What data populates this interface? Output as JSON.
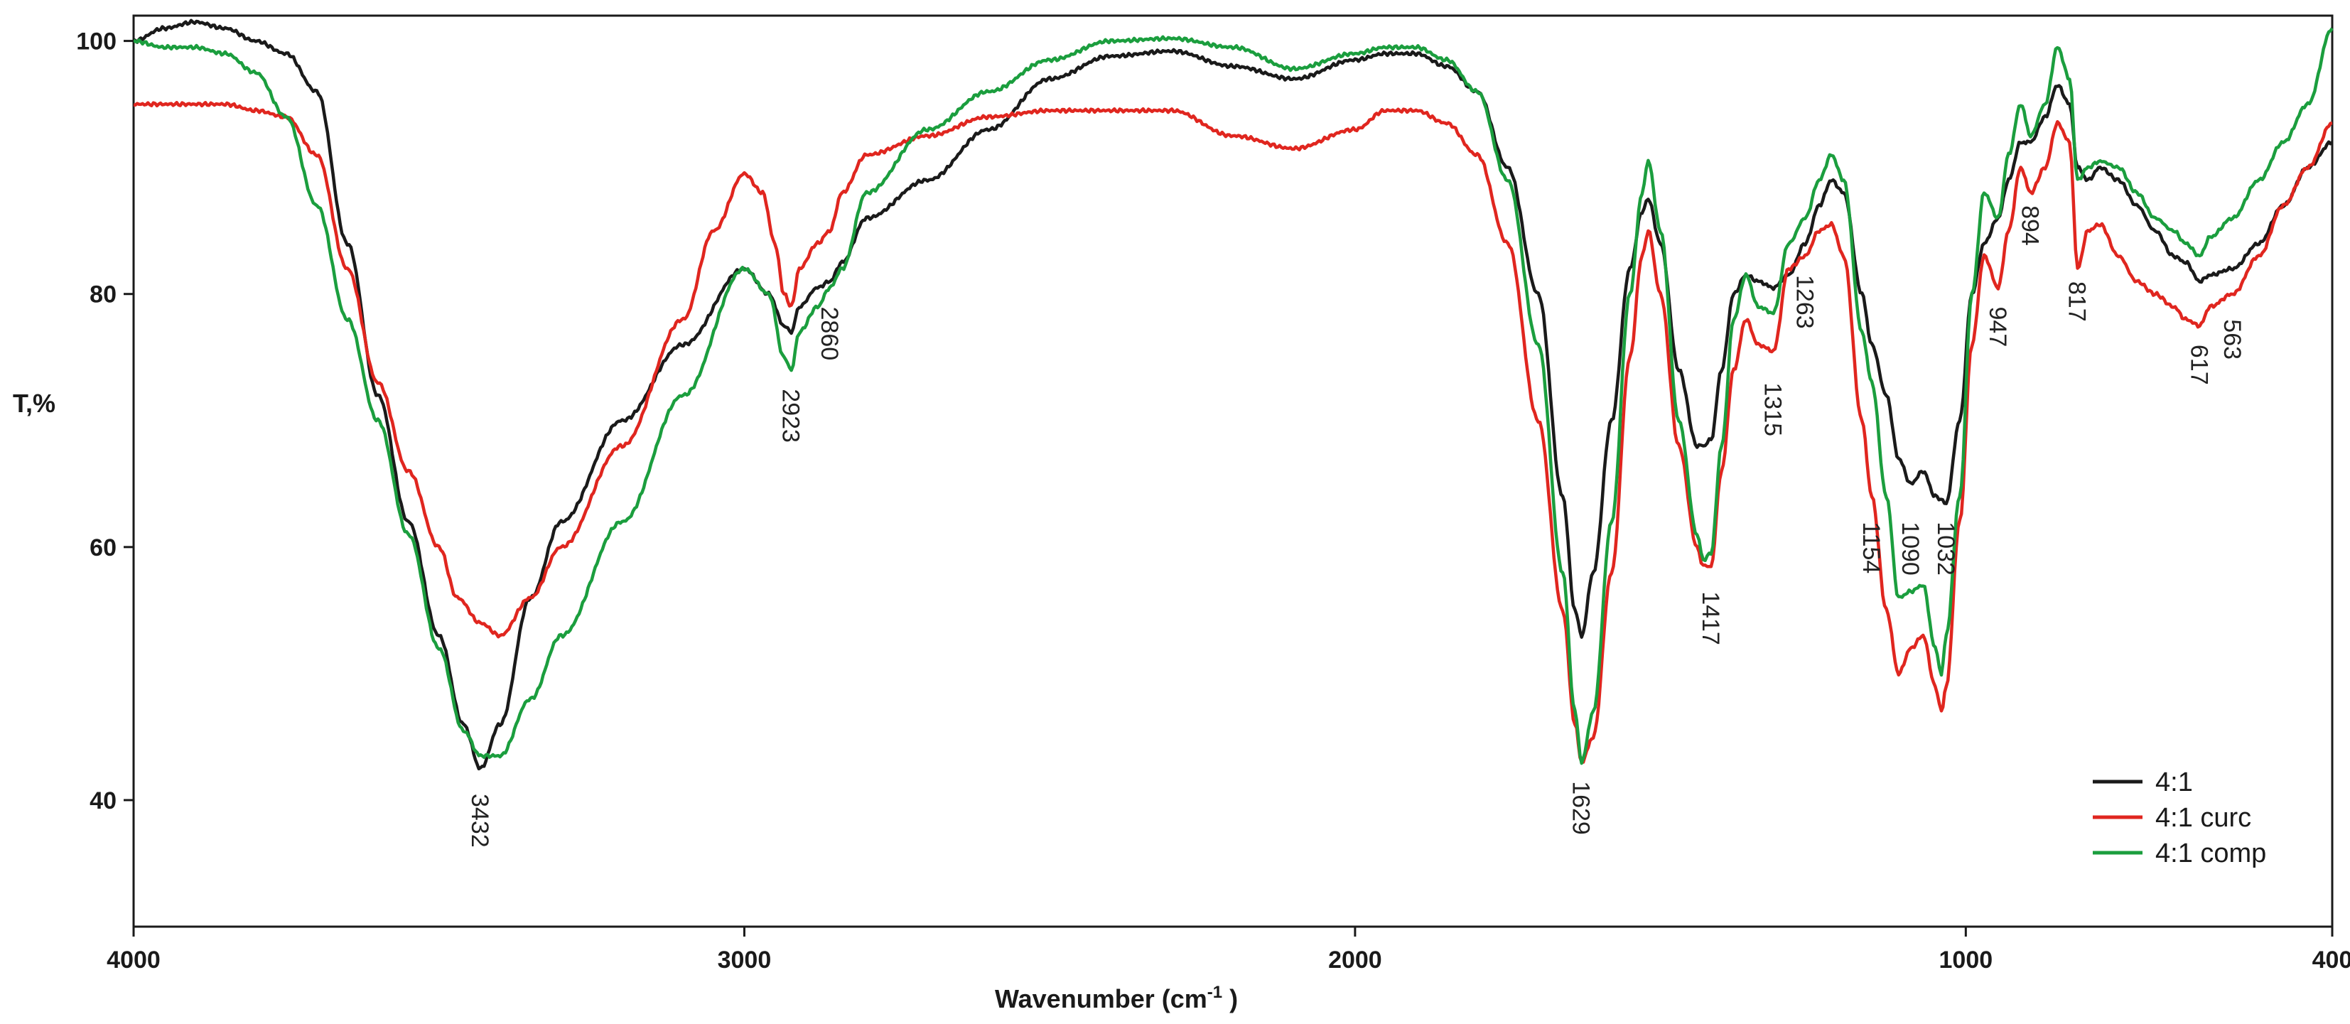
{
  "chart_data": {
    "type": "line",
    "xlabel": "Wavenumber (cm",
    "xlabel_sup": "-1",
    "xlabel_end": " )",
    "ylabel": "T,%",
    "xlim": [
      4000,
      400
    ],
    "ylim": [
      30,
      102
    ],
    "x_reversed": true,
    "grid": false,
    "legend_position": "bottom-right",
    "x_ticks": [
      4000,
      3000,
      2000,
      1000,
      400
    ],
    "x_tick_labels": [
      "4000",
      "3000",
      "2000",
      "1000",
      "400"
    ],
    "y_ticks": [
      40,
      60,
      80,
      100
    ],
    "y_tick_labels": [
      "40",
      "60",
      "80",
      "100"
    ],
    "series": [
      {
        "name": "4:1",
        "color": "#1a1a1a",
        "points": [
          [
            4000,
            100
          ],
          [
            3950,
            101
          ],
          [
            3900,
            101.5
          ],
          [
            3850,
            101
          ],
          [
            3800,
            100
          ],
          [
            3750,
            99
          ],
          [
            3700,
            96
          ],
          [
            3650,
            84
          ],
          [
            3600,
            72
          ],
          [
            3550,
            62
          ],
          [
            3500,
            53
          ],
          [
            3460,
            46
          ],
          [
            3432,
            42.5
          ],
          [
            3400,
            46
          ],
          [
            3350,
            56
          ],
          [
            3300,
            62
          ],
          [
            3200,
            70
          ],
          [
            3100,
            76
          ],
          [
            3000,
            82
          ],
          [
            2960,
            80
          ],
          [
            2935,
            77.5
          ],
          [
            2923,
            77
          ],
          [
            2910,
            79
          ],
          [
            2880,
            80.5
          ],
          [
            2860,
            81
          ],
          [
            2840,
            82.5
          ],
          [
            2800,
            86
          ],
          [
            2700,
            89
          ],
          [
            2600,
            93
          ],
          [
            2500,
            97
          ],
          [
            2400,
            98.8
          ],
          [
            2300,
            99.2
          ],
          [
            2200,
            98
          ],
          [
            2100,
            97
          ],
          [
            2000,
            98.5
          ],
          [
            1950,
            99
          ],
          [
            1900,
            99
          ],
          [
            1850,
            98
          ],
          [
            1800,
            96
          ],
          [
            1750,
            90
          ],
          [
            1700,
            80
          ],
          [
            1660,
            64
          ],
          [
            1640,
            55
          ],
          [
            1629,
            53
          ],
          [
            1610,
            58
          ],
          [
            1580,
            70
          ],
          [
            1550,
            82
          ],
          [
            1530,
            86.5
          ],
          [
            1520,
            87.5
          ],
          [
            1500,
            84
          ],
          [
            1470,
            74
          ],
          [
            1440,
            68
          ],
          [
            1430,
            68
          ],
          [
            1417,
            68.5
          ],
          [
            1400,
            74
          ],
          [
            1380,
            80
          ],
          [
            1360,
            81.5
          ],
          [
            1340,
            81
          ],
          [
            1315,
            80.5
          ],
          [
            1290,
            81.5
          ],
          [
            1263,
            84
          ],
          [
            1240,
            87
          ],
          [
            1220,
            89
          ],
          [
            1200,
            88
          ],
          [
            1170,
            80
          ],
          [
            1154,
            76
          ],
          [
            1130,
            72
          ],
          [
            1110,
            67
          ],
          [
            1090,
            65
          ],
          [
            1070,
            66
          ],
          [
            1050,
            64
          ],
          [
            1032,
            63.5
          ],
          [
            1010,
            70
          ],
          [
            990,
            80
          ],
          [
            970,
            84
          ],
          [
            947,
            86
          ],
          [
            930,
            89
          ],
          [
            910,
            92
          ],
          [
            894,
            92
          ],
          [
            870,
            94
          ],
          [
            850,
            96.5
          ],
          [
            830,
            95
          ],
          [
            817,
            90
          ],
          [
            800,
            89
          ],
          [
            780,
            90
          ],
          [
            750,
            89
          ],
          [
            720,
            87
          ],
          [
            690,
            85
          ],
          [
            660,
            83
          ],
          [
            640,
            82.5
          ],
          [
            617,
            81
          ],
          [
            600,
            81.5
          ],
          [
            563,
            82
          ],
          [
            520,
            84
          ],
          [
            480,
            87
          ],
          [
            440,
            90
          ],
          [
            400,
            92
          ]
        ]
      },
      {
        "name": "4:1 curc",
        "color": "#e0261f",
        "points": [
          [
            4000,
            95
          ],
          [
            3950,
            95
          ],
          [
            3900,
            95
          ],
          [
            3850,
            95
          ],
          [
            3800,
            94.5
          ],
          [
            3750,
            94
          ],
          [
            3700,
            91
          ],
          [
            3650,
            82
          ],
          [
            3600,
            73
          ],
          [
            3550,
            66
          ],
          [
            3500,
            60
          ],
          [
            3470,
            56
          ],
          [
            3432,
            54
          ],
          [
            3400,
            53
          ],
          [
            3350,
            56
          ],
          [
            3300,
            60
          ],
          [
            3200,
            68
          ],
          [
            3100,
            78
          ],
          [
            3050,
            85
          ],
          [
            3000,
            89.5
          ],
          [
            2970,
            88
          ],
          [
            2950,
            84
          ],
          [
            2935,
            80
          ],
          [
            2923,
            79
          ],
          [
            2910,
            82
          ],
          [
            2880,
            84
          ],
          [
            2860,
            85
          ],
          [
            2840,
            88
          ],
          [
            2800,
            91
          ],
          [
            2700,
            92.5
          ],
          [
            2600,
            94
          ],
          [
            2500,
            94.5
          ],
          [
            2400,
            94.5
          ],
          [
            2300,
            94.5
          ],
          [
            2200,
            92.5
          ],
          [
            2100,
            91.5
          ],
          [
            2000,
            93
          ],
          [
            1950,
            94.5
          ],
          [
            1900,
            94.5
          ],
          [
            1850,
            93.5
          ],
          [
            1800,
            91
          ],
          [
            1750,
            84
          ],
          [
            1700,
            70
          ],
          [
            1660,
            55
          ],
          [
            1640,
            46
          ],
          [
            1629,
            43
          ],
          [
            1610,
            45
          ],
          [
            1580,
            58
          ],
          [
            1550,
            75
          ],
          [
            1530,
            83
          ],
          [
            1520,
            85
          ],
          [
            1500,
            80
          ],
          [
            1470,
            68
          ],
          [
            1440,
            60
          ],
          [
            1430,
            58.5
          ],
          [
            1417,
            58.5
          ],
          [
            1400,
            66
          ],
          [
            1380,
            74
          ],
          [
            1360,
            78
          ],
          [
            1340,
            76
          ],
          [
            1315,
            75.5
          ],
          [
            1290,
            82
          ],
          [
            1263,
            83
          ],
          [
            1240,
            85
          ],
          [
            1220,
            85.5
          ],
          [
            1200,
            83
          ],
          [
            1170,
            70
          ],
          [
            1154,
            64
          ],
          [
            1130,
            55
          ],
          [
            1110,
            50
          ],
          [
            1090,
            52
          ],
          [
            1070,
            53
          ],
          [
            1050,
            49
          ],
          [
            1040,
            47
          ],
          [
            1032,
            49
          ],
          [
            1010,
            62
          ],
          [
            990,
            76
          ],
          [
            970,
            83
          ],
          [
            947,
            80.5
          ],
          [
            930,
            85
          ],
          [
            910,
            90
          ],
          [
            894,
            88
          ],
          [
            870,
            90
          ],
          [
            850,
            93.5
          ],
          [
            830,
            92
          ],
          [
            817,
            82
          ],
          [
            800,
            85
          ],
          [
            780,
            85.5
          ],
          [
            750,
            83
          ],
          [
            720,
            81
          ],
          [
            690,
            80
          ],
          [
            660,
            79
          ],
          [
            640,
            78
          ],
          [
            617,
            77.5
          ],
          [
            600,
            79
          ],
          [
            563,
            80
          ],
          [
            520,
            83
          ],
          [
            480,
            87
          ],
          [
            440,
            90
          ],
          [
            400,
            93.5
          ]
        ]
      },
      {
        "name": "4:1 comp",
        "color": "#1b9e3e",
        "points": [
          [
            4000,
            100
          ],
          [
            3950,
            99.5
          ],
          [
            3900,
            99.5
          ],
          [
            3850,
            99
          ],
          [
            3800,
            97.5
          ],
          [
            3750,
            94
          ],
          [
            3700,
            87
          ],
          [
            3650,
            78
          ],
          [
            3600,
            70
          ],
          [
            3550,
            61
          ],
          [
            3500,
            52
          ],
          [
            3460,
            45.5
          ],
          [
            3432,
            43.5
          ],
          [
            3400,
            43.5
          ],
          [
            3350,
            48
          ],
          [
            3300,
            53
          ],
          [
            3200,
            62
          ],
          [
            3100,
            72
          ],
          [
            3000,
            82
          ],
          [
            2960,
            80
          ],
          [
            2935,
            75
          ],
          [
            2923,
            74
          ],
          [
            2910,
            77
          ],
          [
            2880,
            79
          ],
          [
            2860,
            80.5
          ],
          [
            2840,
            82
          ],
          [
            2800,
            88
          ],
          [
            2700,
            93
          ],
          [
            2600,
            96
          ],
          [
            2500,
            98.5
          ],
          [
            2400,
            100
          ],
          [
            2300,
            100.2
          ],
          [
            2200,
            99.5
          ],
          [
            2100,
            97.8
          ],
          [
            2000,
            99
          ],
          [
            1950,
            99.5
          ],
          [
            1900,
            99.5
          ],
          [
            1850,
            98.5
          ],
          [
            1800,
            96
          ],
          [
            1750,
            89
          ],
          [
            1700,
            76
          ],
          [
            1660,
            58
          ],
          [
            1640,
            47
          ],
          [
            1629,
            43
          ],
          [
            1610,
            47
          ],
          [
            1580,
            62
          ],
          [
            1550,
            80
          ],
          [
            1530,
            88
          ],
          [
            1520,
            90.5
          ],
          [
            1500,
            85
          ],
          [
            1470,
            70
          ],
          [
            1440,
            61
          ],
          [
            1430,
            59
          ],
          [
            1417,
            59.5
          ],
          [
            1400,
            68
          ],
          [
            1380,
            78
          ],
          [
            1360,
            81.5
          ],
          [
            1340,
            79
          ],
          [
            1315,
            78.5
          ],
          [
            1290,
            84
          ],
          [
            1263,
            86
          ],
          [
            1240,
            89
          ],
          [
            1220,
            91
          ],
          [
            1200,
            89
          ],
          [
            1170,
            77
          ],
          [
            1154,
            73
          ],
          [
            1130,
            64
          ],
          [
            1110,
            56
          ],
          [
            1090,
            56.5
          ],
          [
            1070,
            57
          ],
          [
            1050,
            52
          ],
          [
            1040,
            50
          ],
          [
            1032,
            53
          ],
          [
            1010,
            64
          ],
          [
            990,
            80
          ],
          [
            970,
            88
          ],
          [
            947,
            86
          ],
          [
            930,
            91
          ],
          [
            910,
            95
          ],
          [
            894,
            92.5
          ],
          [
            870,
            95
          ],
          [
            850,
            99.5
          ],
          [
            830,
            97
          ],
          [
            817,
            89
          ],
          [
            800,
            90
          ],
          [
            780,
            90.5
          ],
          [
            750,
            90
          ],
          [
            720,
            88
          ],
          [
            690,
            86
          ],
          [
            660,
            85
          ],
          [
            640,
            84
          ],
          [
            617,
            83
          ],
          [
            600,
            84.5
          ],
          [
            563,
            86
          ],
          [
            520,
            89
          ],
          [
            480,
            92
          ],
          [
            440,
            95
          ],
          [
            400,
            101
          ]
        ]
      }
    ],
    "peak_labels": [
      {
        "text": "3432",
        "x": 3432,
        "y": 40.5,
        "side": "below"
      },
      {
        "text": "2923",
        "x": 2923,
        "y": 72.5,
        "side": "below"
      },
      {
        "text": "2860",
        "x": 2860,
        "y": 79,
        "side": "below"
      },
      {
        "text": "1629",
        "x": 1629,
        "y": 41.5,
        "side": "below"
      },
      {
        "text": "1417",
        "x": 1417,
        "y": 56.5,
        "side": "below"
      },
      {
        "text": "1315",
        "x": 1315,
        "y": 73,
        "side": "below"
      },
      {
        "text": "1263",
        "x": 1263,
        "y": 81.5,
        "side": "below"
      },
      {
        "text": "1154",
        "x": 1154,
        "y": 62,
        "side": "below"
      },
      {
        "text": "1090",
        "x": 1090,
        "y": 62,
        "side": "below"
      },
      {
        "text": "1032",
        "x": 1032,
        "y": 62,
        "side": "below"
      },
      {
        "text": "947",
        "x": 947,
        "y": 79,
        "side": "below"
      },
      {
        "text": "894",
        "x": 894,
        "y": 87,
        "side": "below"
      },
      {
        "text": "817",
        "x": 817,
        "y": 81,
        "side": "below"
      },
      {
        "text": "617",
        "x": 617,
        "y": 76,
        "side": "below"
      },
      {
        "text": "563",
        "x": 563,
        "y": 78,
        "side": "below"
      }
    ]
  }
}
